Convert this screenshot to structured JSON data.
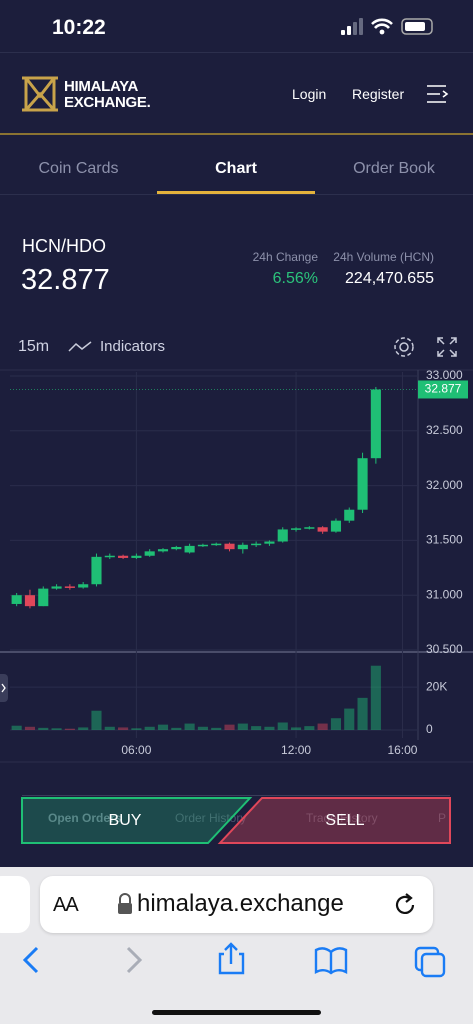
{
  "status_bar": {
    "time": "10:22"
  },
  "header": {
    "brand": [
      "HIMALAYA",
      "EXCHANGE."
    ],
    "login": "Login",
    "register": "Register"
  },
  "tabs": [
    "Coin Cards",
    "Chart",
    "Order Book"
  ],
  "pair": {
    "symbol": "HCN/HDO",
    "price": "32.877",
    "change_label": "24h Change",
    "change": "6.56%",
    "volume_label": "24h Volume (HCN)",
    "volume": "224,470.655"
  },
  "toolbar": {
    "interval": "15m",
    "indicators": "Indicators"
  },
  "chart_data": {
    "type": "candlestick",
    "x": [
      "01:30",
      "02:00",
      "02:30",
      "03:00",
      "03:30",
      "04:00",
      "04:30",
      "05:00",
      "05:30",
      "06:00",
      "06:30",
      "07:00",
      "07:30",
      "08:00",
      "08:30",
      "09:00",
      "09:30",
      "10:00",
      "10:30",
      "11:00",
      "11:30",
      "12:00",
      "12:30",
      "13:00",
      "13:30",
      "14:00",
      "14:30",
      "15:00"
    ],
    "open": [
      30.92,
      31.0,
      30.9,
      31.06,
      31.08,
      31.07,
      31.1,
      31.35,
      31.36,
      31.34,
      31.36,
      31.4,
      31.42,
      31.39,
      31.45,
      31.46,
      31.47,
      31.42,
      31.46,
      31.47,
      31.49,
      31.6,
      31.61,
      31.62,
      31.58,
      31.68,
      31.78,
      32.25
    ],
    "high": [
      31.02,
      31.05,
      31.08,
      31.1,
      31.1,
      31.12,
      31.38,
      31.38,
      31.37,
      31.38,
      31.42,
      31.43,
      31.45,
      31.47,
      31.47,
      31.48,
      31.48,
      31.48,
      31.49,
      31.5,
      31.62,
      31.62,
      31.63,
      31.63,
      31.7,
      31.8,
      32.3,
      32.9
    ],
    "low": [
      30.9,
      30.88,
      30.9,
      31.05,
      31.05,
      31.06,
      31.08,
      31.33,
      31.33,
      31.33,
      31.35,
      31.39,
      31.41,
      31.38,
      31.44,
      31.45,
      31.4,
      31.38,
      31.44,
      31.45,
      31.48,
      31.58,
      31.6,
      31.56,
      31.57,
      31.66,
      31.75,
      32.2
    ],
    "close": [
      31.0,
      30.9,
      31.06,
      31.08,
      31.07,
      31.1,
      31.35,
      31.36,
      31.34,
      31.36,
      31.4,
      31.42,
      31.44,
      31.45,
      31.46,
      31.47,
      31.42,
      31.46,
      31.47,
      31.49,
      31.6,
      31.61,
      31.62,
      31.58,
      31.68,
      31.78,
      32.25,
      32.877
    ],
    "volume": [
      2000,
      1500,
      1000,
      800,
      600,
      1200,
      9000,
      1500,
      1200,
      800,
      1500,
      2500,
      1000,
      3000,
      1500,
      1000,
      2500,
      3000,
      1800,
      1500,
      3500,
      1200,
      1800,
      3000,
      5500,
      10000,
      15000,
      30000
    ],
    "up_color": "#1fbf75",
    "down_color": "#e0475a",
    "xlim": [
      "01:15",
      "16:35"
    ],
    "xticks": [
      "06:00",
      "12:00",
      "16:00"
    ],
    "ylim": [
      30.5,
      33.0
    ],
    "yticks": [
      {
        "value": 30.5,
        "label": "30.500"
      },
      {
        "value": 31.0,
        "label": "31.000"
      },
      {
        "value": 31.5,
        "label": "31.500"
      },
      {
        "value": 32.0,
        "label": "32.000"
      },
      {
        "value": 32.5,
        "label": "32.500"
      },
      {
        "value": 33.0,
        "label": "33.000"
      }
    ],
    "volume_ylim": [
      0,
      35000
    ],
    "volume_yticks": [
      0,
      {
        "value": 20000,
        "label": "20K"
      }
    ],
    "grid": true
  },
  "orders": {
    "tabs": [
      "Open Orders",
      "Order History",
      "Trade History",
      "P"
    ],
    "buy": "BUY",
    "sell": "SELL"
  },
  "browser": {
    "text_size": "AA",
    "url": "himalaya.exchange"
  }
}
